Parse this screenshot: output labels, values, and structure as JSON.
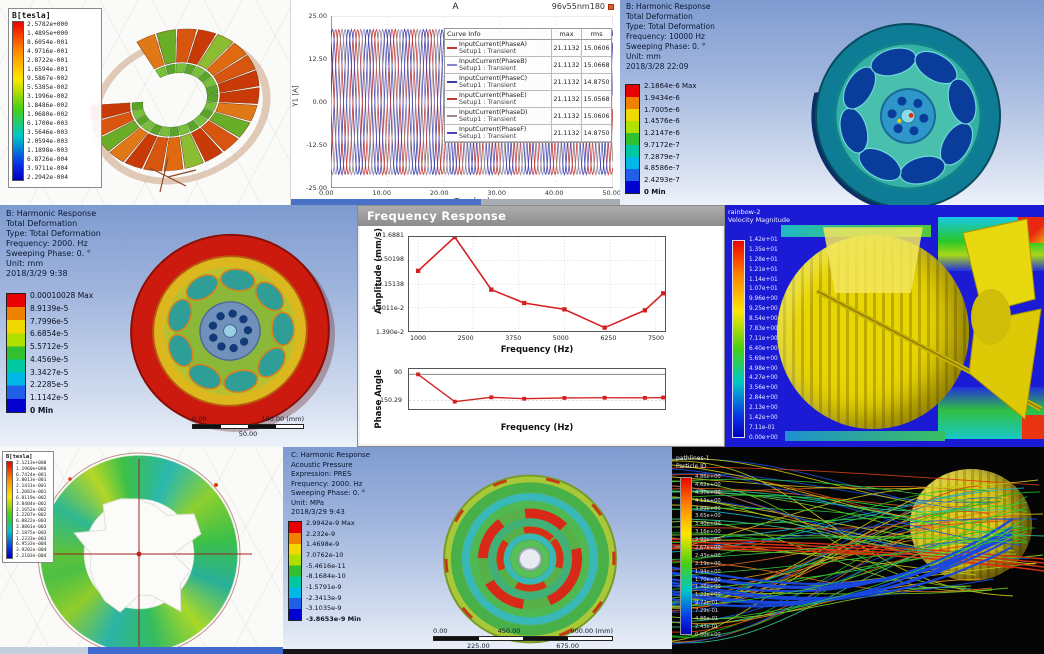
{
  "colors": {
    "ansys_header_text": "#0a1833",
    "plot_series_red": "#c03a3a",
    "plot_series_blue": "#3c3c9e",
    "freq_series": "#d42020"
  },
  "chart_data": [
    {
      "type": "line",
      "title": "A",
      "corner_label": "96v55nm180",
      "xlabel": "Time [ms]",
      "ylabel": "Y1 [A]",
      "xlim": [
        0,
        50
      ],
      "ylim": [
        -25,
        25
      ],
      "xticks": [
        "0.00",
        "10.00",
        "20.00",
        "30.00",
        "40.00",
        "50.00"
      ],
      "yticks": [
        "25.00",
        "12.50",
        "0.00",
        "-12.50",
        "-25.00"
      ],
      "waveform": {
        "amplitude": 21.1132,
        "period_ms": 3.3333
      },
      "series": [
        {
          "name": "InputCurrent(PhaseA)",
          "setup": "Setup1 : Transient",
          "max": "21.1132",
          "rms": "15.0606",
          "phase_deg": 0,
          "color": "#c03a3a"
        },
        {
          "name": "InputCurrent(PhaseB)",
          "setup": "Setup1 : Transient",
          "max": "21.1132",
          "rms": "15.0668",
          "phase_deg": 180,
          "color": "#8585c9"
        },
        {
          "name": "InputCurrent(PhaseC)",
          "setup": "Setup1 : Transient",
          "max": "21.1132",
          "rms": "14.8750",
          "phase_deg": 120,
          "color": "#3c3c9e"
        },
        {
          "name": "InputCurrent(PhaseE)",
          "setup": "Setup1 : Transient",
          "max": "21.1132",
          "rms": "15.0568",
          "phase_deg": 300,
          "color": "#c03a3a"
        },
        {
          "name": "InputCurrent(PhaseD)",
          "setup": "Setup1 : Transient",
          "max": "21.1132",
          "rms": "15.0606",
          "phase_deg": 240,
          "color": "#9b8a8a"
        },
        {
          "name": "InputCurrent(PhaseF)",
          "setup": "Setup1 : Transient",
          "max": "21.1132",
          "rms": "14.8750",
          "phase_deg": 60,
          "color": "#4646b4"
        }
      ]
    },
    {
      "type": "line",
      "title": "Frequency Response",
      "subtitle": "Amplitude",
      "xlabel": "Frequency (Hz)",
      "ylabel": "Amplitude (mm/s)",
      "yscale": "log",
      "xticks": [
        "1000",
        "2500",
        "3750",
        "5000",
        "6250",
        "7500"
      ],
      "yticks": [
        "1.6881",
        "0.50198",
        "0.15138",
        "4.6011e-2",
        "1.390e-2"
      ],
      "xlim": [
        750,
        7750
      ],
      "ylim": [
        0.0139,
        1.6881
      ],
      "x": [
        1000,
        2000,
        3000,
        3900,
        5000,
        6100,
        7200,
        7700
      ],
      "y": [
        0.3,
        1.6881,
        0.115,
        0.058,
        0.042,
        0.0165,
        0.04,
        0.095
      ],
      "color": "#d42020"
    },
    {
      "type": "line",
      "subtitle": "Phase",
      "xlabel": "Frequency (Hz)",
      "ylabel": "Phase Angle",
      "yticks": [
        "90",
        "-150.29"
      ],
      "xlim": [
        750,
        7750
      ],
      "ylim": [
        -230,
        140
      ],
      "x": [
        1000,
        2000,
        3000,
        3900,
        5000,
        6100,
        7200,
        7700
      ],
      "y": [
        90,
        -162,
        -122,
        -135,
        -128,
        -126,
        -127,
        -124
      ],
      "color": "#d42020"
    }
  ],
  "panels": {
    "maxwellTop": {
      "legend_title": "B[tesla]",
      "legend_values": [
        "2.5782e+000",
        "1.4895e+000",
        "8.6054e-001",
        "4.9716e-001",
        "2.8722e-001",
        "1.6594e-001",
        "9.5867e-002",
        "5.5385e-002",
        "3.1996e-002",
        "1.8486e-002",
        "1.0680e-002",
        "6.1700e-003",
        "3.5646e-003",
        "2.0594e-003",
        "1.1898e-003",
        "6.8726e-004",
        "3.9711e-004",
        "2.2942e-004"
      ]
    },
    "currentPlot": {
      "table_headers": [
        "Curve Info",
        "max",
        "rms"
      ]
    },
    "harmonicTopRight": {
      "header_lines": [
        "B: Harmonic Response",
        "Total Deformation",
        "Type: Total Deformation",
        "Frequency: 10000 Hz",
        "Sweeping Phase: 0. °",
        "Unit: mm",
        "2018/3/28 22:09"
      ],
      "legend_values": [
        "2.1864e-6 Max",
        "1.9434e-6",
        "1.7005e-6",
        "1.4576e-6",
        "1.2147e-6",
        "9.7172e-7",
        "7.2879e-7",
        "4.8586e-7",
        "2.4293e-7",
        "0 Min"
      ]
    },
    "harmonicMidLeft": {
      "header_lines": [
        "B: Harmonic Response",
        "Total Deformation",
        "Type: Total Deformation",
        "Frequency: 2000. Hz",
        "Sweeping Phase: 0. °",
        "Unit: mm",
        "2018/3/29 9:38"
      ],
      "legend_values": [
        "0.00010028 Max",
        "8.9139e-5",
        "7.7996e-5",
        "6.6854e-5",
        "5.5712e-5",
        "4.4569e-5",
        "3.3427e-5",
        "2.2285e-5",
        "1.1142e-5",
        "0 Min"
      ],
      "scalebar": {
        "left": "0.00",
        "mid": "50.00",
        "right": "100.00 (mm)"
      }
    },
    "freqResponse": {
      "window_title": "Frequency Response"
    },
    "velocityContour": {
      "title_lines": [
        "rainbow-2",
        "Velocity Magnitude"
      ],
      "legend_values": [
        "1.42e+01",
        "1.35e+01",
        "1.28e+01",
        "1.21e+01",
        "1.14e+01",
        "1.07e+01",
        "9.96e+00",
        "9.25e+00",
        "8.54e+00",
        "7.83e+00",
        "7.11e+00",
        "6.40e+00",
        "5.69e+00",
        "4.98e+00",
        "4.27e+00",
        "3.56e+00",
        "2.84e+00",
        "2.13e+00",
        "1.42e+00",
        "7.11e-01",
        "0.00e+00"
      ]
    },
    "maxwellBottom": {
      "legend_title": "B[tesla]",
      "legend_values": [
        "2.1213e+000",
        "1.1960e+000",
        "6.7424e-001",
        "3.8013e-001",
        "2.1431e-001",
        "1.2082e-001",
        "6.8119e-002",
        "3.8404e-002",
        "2.1652e-002",
        "1.2207e-002",
        "6.8822e-003",
        "3.8801e-003",
        "2.1875e-003",
        "1.2333e-003",
        "6.9533e-004",
        "3.9202e-004",
        "2.2103e-004"
      ]
    },
    "harmonicAcoustic": {
      "header_lines": [
        "C: Harmonic Response",
        "Acoustic Pressure",
        "Expression: PRES",
        "Frequency: 2000. Hz",
        "Sweeping Phase: 0. °",
        "Unit: MPa",
        "2018/3/29 9:43"
      ],
      "legend_values": [
        "2.9942e-9 Max",
        "2.232e-9",
        "1.4698e-9",
        "7.0762e-10",
        "-5.4616e-11",
        "-8.1684e-10",
        "-1.5791e-9",
        "-2.3413e-9",
        "-3.1035e-9",
        "-3.8653e-9 Min"
      ],
      "scalebar": {
        "row1": [
          "0.00",
          "450.00",
          "900.00 (mm)"
        ],
        "row2": [
          "225.00",
          "675.00"
        ]
      }
    },
    "pathlines": {
      "title_lines": [
        "pathlines-1",
        "Particle ID"
      ],
      "legend_values": [
        "4.86e+00",
        "4.62e+00",
        "4.37e+00",
        "4.13e+00",
        "3.89e+00",
        "3.65e+00",
        "3.40e+00",
        "3.16e+00",
        "2.92e+00",
        "2.67e+00",
        "2.43e+00",
        "2.19e+00",
        "1.94e+00",
        "1.70e+00",
        "1.46e+00",
        "1.22e+00",
        "9.72e-01",
        "7.29e-01",
        "4.86e-01",
        "2.43e-01",
        "0.00e+00"
      ]
    }
  }
}
